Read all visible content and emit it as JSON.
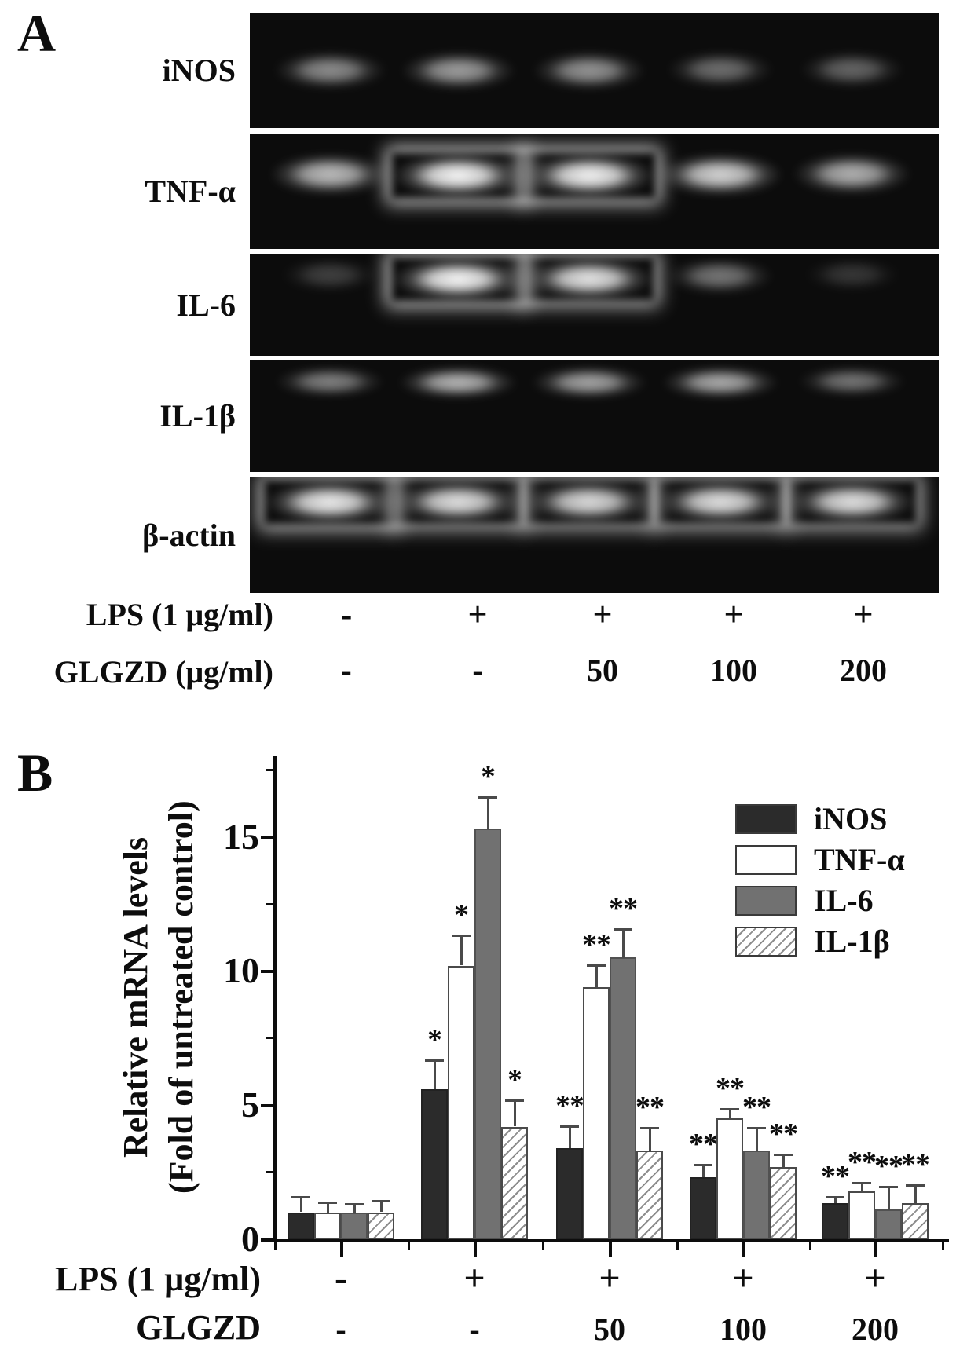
{
  "chart_data": {
    "type": "bar",
    "title": "",
    "ylabel_line1": "Relative mRNA levels",
    "ylabel_line2": "(Fold of untreated control)",
    "ylim": [
      0,
      17.5
    ],
    "yticks_major": [
      0,
      5,
      10,
      15
    ],
    "yticks_minor": [
      2.5,
      7.5,
      12.5,
      17.5
    ],
    "grid": false,
    "legend_position": "upper-right",
    "categories": [
      "LPS - / GLGZD -",
      "LPS + / GLGZD -",
      "LPS + / GLGZD 50",
      "LPS + / GLGZD 100",
      "LPS + / GLGZD 200"
    ],
    "x_rows": [
      {
        "label": "LPS (1 μg/ml)",
        "values": [
          "-",
          "+",
          "+",
          "+",
          "+"
        ]
      },
      {
        "label": "GLGZD (μg/ml)",
        "values": [
          "-",
          "-",
          "50",
          "100",
          "200"
        ]
      }
    ],
    "series": [
      {
        "name": "iNOS",
        "pattern": "solid-dark",
        "fill": "#2b2b2b",
        "values": [
          1.0,
          5.6,
          3.4,
          2.3,
          1.35
        ],
        "errors": [
          0.6,
          1.1,
          0.85,
          0.5,
          0.25
        ],
        "sig": [
          "",
          "*",
          "**",
          "**",
          "**"
        ]
      },
      {
        "name": "TNF-α",
        "pattern": "solid-white",
        "fill": "#ffffff",
        "values": [
          1.0,
          10.2,
          9.4,
          4.5,
          1.8
        ],
        "errors": [
          0.4,
          1.15,
          0.85,
          0.4,
          0.35
        ],
        "sig": [
          "",
          "*",
          "**",
          "**",
          "**"
        ]
      },
      {
        "name": "IL-6",
        "pattern": "solid-gray",
        "fill": "#717171",
        "values": [
          1.0,
          15.3,
          10.5,
          3.3,
          1.1
        ],
        "errors": [
          0.35,
          1.2,
          1.1,
          0.9,
          0.9
        ],
        "sig": [
          "",
          "*",
          "**",
          "**",
          "**"
        ]
      },
      {
        "name": "IL-1β",
        "pattern": "hatch",
        "fill": "#ffffff",
        "values": [
          1.0,
          4.2,
          3.3,
          2.7,
          1.35
        ],
        "errors": [
          0.45,
          1.0,
          0.9,
          0.5,
          0.7
        ],
        "sig": [
          "",
          "*",
          "**",
          "**",
          "**"
        ]
      }
    ]
  },
  "figure": {
    "panel_a": {
      "letter": "A",
      "gel_rows": [
        {
          "label": "iNOS",
          "band_top_pct": 33,
          "band_h_pct": 33,
          "lanes": [
            0.55,
            0.62,
            0.58,
            0.42,
            0.38
          ]
        },
        {
          "label": "TNF-α",
          "band_top_pct": 17,
          "band_h_pct": 34,
          "lanes": [
            0.75,
            1.0,
            0.98,
            0.85,
            0.7
          ]
        },
        {
          "label": "IL-6",
          "band_top_pct": 3,
          "band_h_pct": 37,
          "lanes": [
            0.22,
            1.0,
            0.92,
            0.45,
            0.18
          ]
        },
        {
          "label": "IL-1β",
          "band_top_pct": 5,
          "band_h_pct": 28,
          "lanes": [
            0.5,
            0.72,
            0.65,
            0.68,
            0.45
          ]
        },
        {
          "label": "β-actin",
          "band_top_pct": 3,
          "band_h_pct": 33,
          "lanes": [
            0.95,
            0.9,
            0.88,
            0.9,
            0.9
          ]
        }
      ],
      "treatment_rows": [
        {
          "label": "LPS (1 μg/ml)",
          "values": [
            "-",
            "+",
            "+",
            "+",
            "+"
          ]
        },
        {
          "label": "GLGZD (μg/ml)",
          "values": [
            "-",
            "-",
            "50",
            "100",
            "200"
          ]
        }
      ]
    },
    "panel_b": {
      "letter": "B"
    }
  }
}
